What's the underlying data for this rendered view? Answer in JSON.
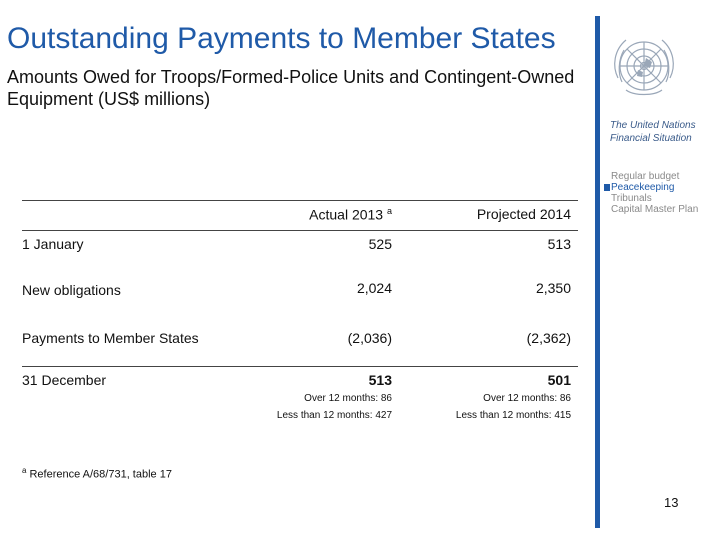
{
  "header": {
    "title": "Outstanding Payments to Member States",
    "subtitle": "Amounts Owed for Troops/Formed-Police Units and Contingent-Owned Equipment (US$ millions)"
  },
  "sidebar": {
    "logo": "un-emblem-icon",
    "title": "The United Nations Financial Situation",
    "items": [
      {
        "label": "Regular budget",
        "active": false
      },
      {
        "label": "Peacekeeping",
        "active": true
      },
      {
        "label": "Tribunals",
        "active": false
      },
      {
        "label": "Capital Master Plan",
        "active": false
      }
    ]
  },
  "table": {
    "columns": [
      {
        "label": "Actual 2013",
        "marker": "a"
      },
      {
        "label": "Projected 2014"
      }
    ],
    "rows": [
      {
        "label": "1 January",
        "actual": "525",
        "projected": "513"
      },
      {
        "label": "New obligations",
        "actual": "2,024",
        "projected": "2,350"
      },
      {
        "label": "Payments to Member States",
        "actual": "(2,036)",
        "projected": "(2,362)"
      },
      {
        "label": "31 December",
        "actual": "513",
        "projected": "501"
      }
    ],
    "breakdown": {
      "actual": {
        "over": "Over 12 months: 86",
        "under": "Less than 12 months: 427"
      },
      "projected": {
        "over": "Over 12 months: 86",
        "under": "Less than 12 months: 415"
      }
    }
  },
  "footnote": {
    "marker": "a",
    "text": "Reference A/68/731, table 17"
  },
  "page_number": "13",
  "colors": {
    "accent": "#1f5aa8",
    "sidebar_muted": "#8a8a8a"
  }
}
